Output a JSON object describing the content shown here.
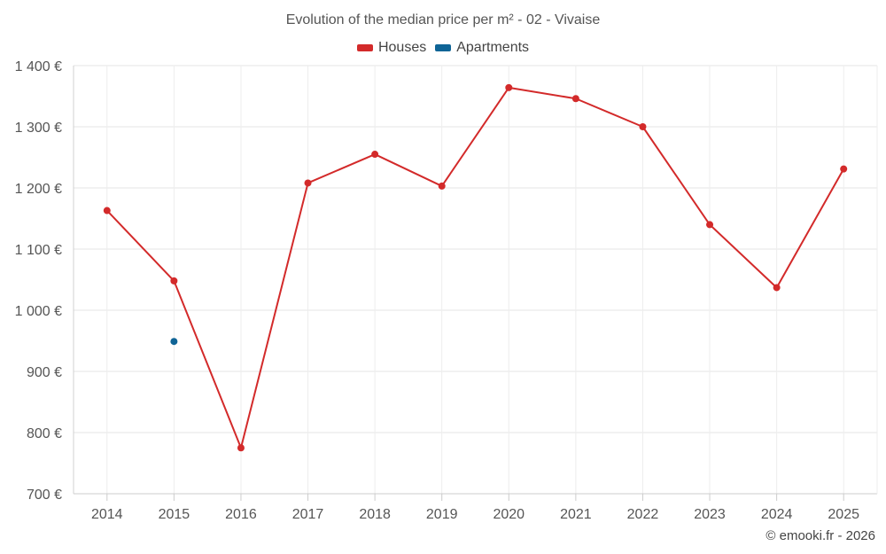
{
  "chart_data": {
    "type": "line",
    "title": "Evolution of the median price per m² - 02 - Vivaise",
    "x": [
      "2014",
      "2015",
      "2016",
      "2017",
      "2018",
      "2019",
      "2020",
      "2021",
      "2022",
      "2023",
      "2024",
      "2025"
    ],
    "series": [
      {
        "name": "Houses",
        "color": "#d32a2a",
        "values": [
          1163,
          1048,
          775,
          1208,
          1255,
          1203,
          1364,
          1346,
          1300,
          1140,
          1037,
          1231
        ]
      },
      {
        "name": "Apartments",
        "color": "#0f6496",
        "values": [
          null,
          949,
          null,
          null,
          null,
          null,
          null,
          null,
          null,
          null,
          null,
          null
        ]
      }
    ],
    "ylim": [
      700,
      1400
    ],
    "yticks": [
      700,
      800,
      900,
      1000,
      1100,
      1200,
      1300,
      1400
    ],
    "ytick_labels": [
      "700 €",
      "800 €",
      "900 €",
      "1 000 €",
      "1 100 €",
      "1 200 €",
      "1 300 €",
      "1 400 €"
    ],
    "grid": true,
    "legend": "top-center",
    "xlabel": "",
    "ylabel": ""
  },
  "credit": "© emooki.fr - 2026"
}
